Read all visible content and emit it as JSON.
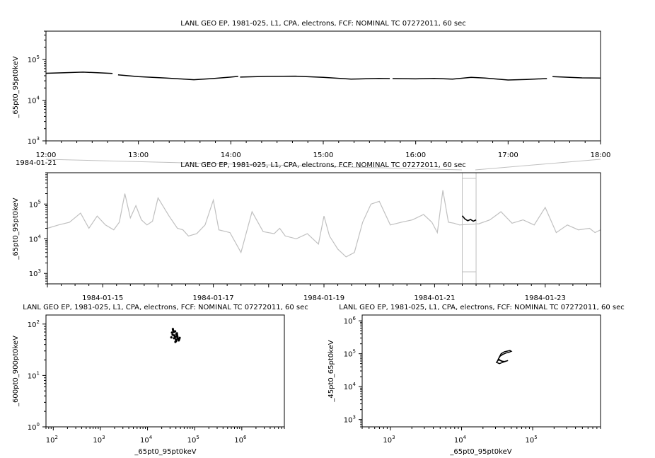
{
  "chart_data": [
    {
      "id": "p1",
      "type": "line",
      "title": "LANL GEO EP, 1981-025, L1, CPA, electrons, FCF: NOMINAL TC 07272011, 60 sec",
      "ylabel": "_65pt0_95pt0keV",
      "xlabel": "",
      "y_scale": "log",
      "ylim": [
        1000,
        500000
      ],
      "y_ticks": [
        {
          "base": "10",
          "exp": "3"
        },
        {
          "base": "10",
          "exp": "4"
        },
        {
          "base": "10",
          "exp": "5"
        }
      ],
      "x_range_hours": [
        12,
        18
      ],
      "x_tick_labels": [
        "12:00",
        "13:00",
        "14:00",
        "15:00",
        "16:00",
        "17:00",
        "18:00"
      ],
      "x_date_label": "1984-01-21",
      "color": "#000000",
      "segments": [
        {
          "x": [
            12.0,
            12.2,
            12.4,
            12.6,
            12.72
          ],
          "y": [
            46000,
            47500,
            49000,
            47000,
            45500
          ]
        },
        {
          "x": [
            12.78,
            13.0,
            13.3,
            13.6,
            13.8,
            14.0,
            14.08
          ],
          "y": [
            42000,
            38000,
            35000,
            32000,
            34000,
            37000,
            38500
          ]
        },
        {
          "x": [
            14.1,
            14.4,
            14.7,
            15.0,
            15.3,
            15.6,
            15.72
          ],
          "y": [
            37000,
            38500,
            39000,
            36500,
            33000,
            34500,
            34000
          ]
        },
        {
          "x": [
            15.75,
            16.0,
            16.2,
            16.4,
            16.6,
            16.75,
            17.0,
            17.2,
            17.42
          ],
          "y": [
            34000,
            33500,
            34500,
            33000,
            36500,
            35000,
            31500,
            32500,
            34000
          ]
        },
        {
          "x": [
            17.48,
            17.6,
            17.8,
            18.0
          ],
          "y": [
            38000,
            37000,
            35500,
            35000
          ]
        }
      ]
    },
    {
      "id": "p2",
      "type": "line",
      "title": "LANL GEO EP, 1981-025, L1, CPA, electrons, FCF: NOMINAL TC 07272011, 60 sec",
      "ylabel": "_65pt0_95pt0keV",
      "xlabel": "",
      "y_scale": "log",
      "ylim": [
        500,
        800000
      ],
      "y_ticks": [
        {
          "base": "10",
          "exp": "3"
        },
        {
          "base": "10",
          "exp": "4"
        },
        {
          "base": "10",
          "exp": "5"
        }
      ],
      "x_range_days": [
        14,
        24
      ],
      "x_tick_labels": [
        {
          "day": 15,
          "label": "1984-01-15"
        },
        {
          "day": 17,
          "label": "1984-01-17"
        },
        {
          "day": 19,
          "label": "1984-01-19"
        },
        {
          "day": 21,
          "label": "1984-01-21"
        },
        {
          "day": 23,
          "label": "1984-01-23"
        }
      ],
      "background_color": "#c0c0c0",
      "highlight_color": "#000000",
      "highlight_range_days": [
        21.5,
        21.75
      ],
      "background": {
        "x": [
          14.0,
          14.2,
          14.4,
          14.6,
          14.75,
          14.9,
          15.05,
          15.2,
          15.3,
          15.4,
          15.5,
          15.6,
          15.7,
          15.8,
          15.9,
          16.0,
          16.2,
          16.35,
          16.45,
          16.55,
          16.7,
          16.85,
          17.0,
          17.1,
          17.3,
          17.5,
          17.7,
          17.9,
          18.1,
          18.2,
          18.3,
          18.5,
          18.7,
          18.9,
          19.0,
          19.1,
          19.25,
          19.4,
          19.55,
          19.7,
          19.85,
          20.0,
          20.2,
          20.4,
          20.6,
          20.8,
          20.95,
          21.05,
          21.15,
          21.25,
          21.35,
          21.45,
          21.8,
          22.0,
          22.2,
          22.4,
          22.6,
          22.8,
          23.0,
          23.2,
          23.4,
          23.6,
          23.8,
          23.9,
          24.0
        ],
        "y": [
          20000,
          25000,
          30000,
          55000,
          20000,
          45000,
          25000,
          18000,
          30000,
          200000,
          40000,
          90000,
          35000,
          25000,
          32000,
          150000,
          45000,
          20000,
          18000,
          12000,
          14000,
          25000,
          130000,
          18000,
          15000,
          4000,
          60000,
          16000,
          14000,
          20000,
          12000,
          10000,
          14000,
          7000,
          45000,
          12000,
          5000,
          3000,
          4000,
          30000,
          100000,
          120000,
          25000,
          30000,
          35000,
          50000,
          30000,
          15000,
          250000,
          30000,
          28000,
          25000,
          27000,
          35000,
          60000,
          28000,
          35000,
          25000,
          80000,
          15000,
          25000,
          18000,
          20000,
          15000,
          18000
        ]
      },
      "highlight": {
        "x": [
          21.5,
          21.55,
          21.6,
          21.65,
          21.7,
          21.75
        ],
        "y": [
          46000,
          37000,
          33000,
          36000,
          32000,
          35000
        ]
      }
    },
    {
      "id": "p3",
      "type": "scatter",
      "title": "LANL GEO EP, 1981-025, L1, CPA, electrons, FCF: NOMINAL TC 07272011, 60 sec",
      "xlabel": "_65pt0_95pt0keV",
      "ylabel": "_600pt0_900pt0keV",
      "x_scale": "log",
      "y_scale": "log",
      "xlim": [
        70,
        8000000
      ],
      "ylim": [
        1,
        150
      ],
      "x_ticks": [
        {
          "base": "10",
          "exp": "2"
        },
        {
          "base": "10",
          "exp": "3"
        },
        {
          "base": "10",
          "exp": "4"
        },
        {
          "base": "10",
          "exp": "5"
        },
        {
          "base": "10",
          "exp": "6"
        }
      ],
      "y_ticks": [
        {
          "base": "10",
          "exp": "0"
        },
        {
          "base": "10",
          "exp": "1"
        },
        {
          "base": "10",
          "exp": "2"
        }
      ],
      "color": "#000000",
      "x": [
        32000,
        34000,
        36000,
        38000,
        40000,
        42000,
        44000,
        46000,
        48000,
        35000,
        37000,
        39000,
        41000,
        43000,
        45000,
        33000,
        36500,
        38500,
        40500,
        42500,
        47000,
        34500,
        39500
      ],
      "y": [
        55000,
        62000,
        70000,
        58000,
        50000,
        66000,
        52000,
        48000,
        54000,
        75000,
        60000,
        45000,
        64000,
        57000,
        50000,
        68000,
        53000,
        72000,
        47000,
        61000,
        51000,
        80000,
        56000
      ],
      "y_divisor": 1000
    },
    {
      "id": "p4",
      "type": "line",
      "title": "LANL GEO EP, 1981-025, L1, CPA, electrons, FCF: NOMINAL TC 07272011, 60 sec",
      "xlabel": "_65pt0_95pt0keV",
      "ylabel": "_45pt0_65pt0keV",
      "x_scale": "log",
      "y_scale": "log",
      "xlim": [
        400,
        900000
      ],
      "ylim": [
        600,
        1500000
      ],
      "x_ticks": [
        {
          "base": "10",
          "exp": "3"
        },
        {
          "base": "10",
          "exp": "4"
        },
        {
          "base": "10",
          "exp": "5"
        }
      ],
      "y_ticks": [
        {
          "base": "10",
          "exp": "3"
        },
        {
          "base": "10",
          "exp": "4"
        },
        {
          "base": "10",
          "exp": "5"
        },
        {
          "base": "10",
          "exp": "6"
        }
      ],
      "color": "#000000",
      "x": [
        32000,
        34000,
        36000,
        40000,
        44000,
        48000,
        50000,
        46000,
        42000,
        38000,
        35000,
        33000,
        36000,
        40000,
        45000,
        38000,
        34000,
        31000,
        33000,
        37000
      ],
      "y": [
        60000,
        80000,
        100000,
        115000,
        120000,
        125000,
        118000,
        110000,
        105000,
        95000,
        85000,
        70000,
        60000,
        58000,
        62000,
        55000,
        50000,
        55000,
        65000,
        60000
      ]
    }
  ]
}
